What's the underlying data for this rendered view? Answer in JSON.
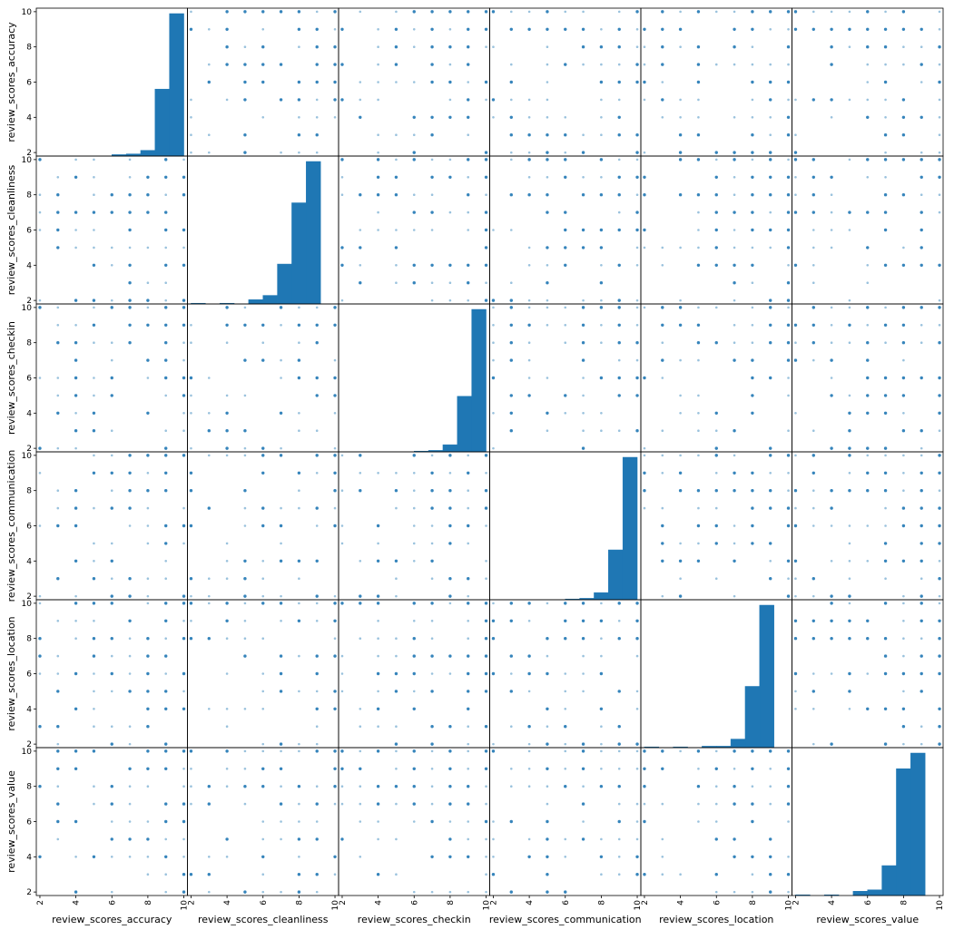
{
  "chart_data": {
    "type": "scatter",
    "variables": [
      "review_scores_accuracy",
      "review_scores_cleanliness",
      "review_scores_checkin",
      "review_scores_communication",
      "review_scores_location",
      "review_scores_value"
    ],
    "ticks": [
      "2",
      "4",
      "6",
      "8",
      "10"
    ],
    "range": [
      1.8,
      10.2
    ],
    "grid": false,
    "point_color": "#1f77b4",
    "bar_color": "#1f77b4",
    "diagonal": "histogram",
    "histogram_bins": [
      2.0,
      2.8,
      3.6,
      4.4,
      5.2,
      6.0,
      6.8,
      7.6,
      8.4,
      9.2,
      10.0
    ],
    "histograms": [
      {
        "variable": "review_scores_accuracy",
        "counts": [
          0,
          0,
          0,
          0,
          0,
          1,
          1.5,
          4,
          47,
          100
        ]
      },
      {
        "variable": "review_scores_cleanliness",
        "counts": [
          0.5,
          0,
          0.5,
          0,
          3,
          6,
          28,
          71,
          100,
          0
        ]
      },
      {
        "variable": "review_scores_checkin",
        "counts": [
          0,
          0,
          0,
          0,
          0,
          0.5,
          1,
          5,
          39,
          100
        ]
      },
      {
        "variable": "review_scores_communication",
        "counts": [
          0,
          0,
          0,
          0,
          0,
          0.5,
          1,
          5,
          35,
          100
        ]
      },
      {
        "variable": "review_scores_location",
        "counts": [
          0.5,
          0,
          0.5,
          0,
          1,
          1,
          6,
          43,
          100,
          0
        ]
      },
      {
        "variable": "review_scores_value",
        "counts": [
          0.5,
          0,
          0.5,
          0,
          3,
          4,
          21,
          89,
          100,
          0
        ]
      }
    ],
    "scatter_levels": [
      2,
      3,
      4,
      5,
      6,
      7,
      8,
      9,
      10
    ]
  }
}
